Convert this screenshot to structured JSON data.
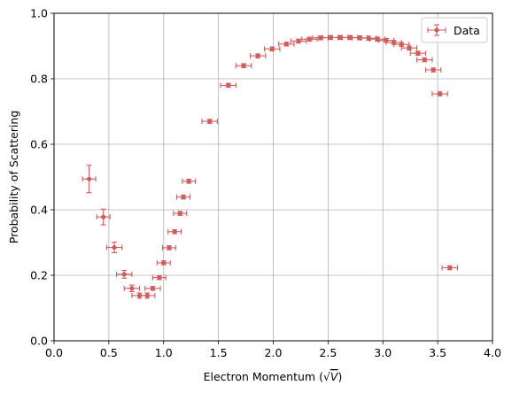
{
  "chart_data": {
    "type": "scatter",
    "title": "",
    "xlabel": "Electron Momentum",
    "xlabel_sqrt_var": "V",
    "ylabel": "Probability of Scattering",
    "xlim": [
      0.0,
      4.0
    ],
    "ylim": [
      0.0,
      1.0
    ],
    "x_ticks": [
      0.0,
      0.5,
      1.0,
      1.5,
      2.0,
      2.5,
      3.0,
      3.5,
      4.0
    ],
    "x_tick_labels": [
      "0.0",
      "0.5",
      "1.0",
      "1.5",
      "2.0",
      "2.5",
      "3.0",
      "3.5",
      "4.0"
    ],
    "y_ticks": [
      0.0,
      0.2,
      0.4,
      0.6,
      0.8,
      1.0
    ],
    "y_tick_labels": [
      "0.0",
      "0.2",
      "0.4",
      "0.6",
      "0.8",
      "1.0"
    ],
    "grid": true,
    "legend_position": "top-right",
    "color": "#cd5c5c",
    "series": [
      {
        "name": "Data",
        "points": [
          {
            "x": 0.32,
            "y": 0.494,
            "xerr": 0.06,
            "yerr": 0.042
          },
          {
            "x": 0.45,
            "y": 0.378,
            "xerr": 0.06,
            "yerr": 0.024
          },
          {
            "x": 0.55,
            "y": 0.285,
            "xerr": 0.07,
            "yerr": 0.016
          },
          {
            "x": 0.64,
            "y": 0.203,
            "xerr": 0.07,
            "yerr": 0.012
          },
          {
            "x": 0.71,
            "y": 0.16,
            "xerr": 0.07,
            "yerr": 0.01
          },
          {
            "x": 0.78,
            "y": 0.138,
            "xerr": 0.07,
            "yerr": 0.008
          },
          {
            "x": 0.85,
            "y": 0.138,
            "xerr": 0.07,
            "yerr": 0.008
          },
          {
            "x": 0.9,
            "y": 0.16,
            "xerr": 0.07,
            "yerr": 0.006
          },
          {
            "x": 0.96,
            "y": 0.193,
            "xerr": 0.06,
            "yerr": 0.006
          },
          {
            "x": 1.0,
            "y": 0.238,
            "xerr": 0.06,
            "yerr": 0.006
          },
          {
            "x": 1.05,
            "y": 0.284,
            "xerr": 0.06,
            "yerr": 0.006
          },
          {
            "x": 1.1,
            "y": 0.333,
            "xerr": 0.06,
            "yerr": 0.006
          },
          {
            "x": 1.15,
            "y": 0.389,
            "xerr": 0.06,
            "yerr": 0.006
          },
          {
            "x": 1.18,
            "y": 0.439,
            "xerr": 0.06,
            "yerr": 0.006
          },
          {
            "x": 1.23,
            "y": 0.487,
            "xerr": 0.06,
            "yerr": 0.006
          },
          {
            "x": 1.42,
            "y": 0.67,
            "xerr": 0.07,
            "yerr": 0.006
          },
          {
            "x": 1.59,
            "y": 0.78,
            "xerr": 0.07,
            "yerr": 0.006
          },
          {
            "x": 1.73,
            "y": 0.84,
            "xerr": 0.07,
            "yerr": 0.006
          },
          {
            "x": 1.86,
            "y": 0.87,
            "xerr": 0.07,
            "yerr": 0.006
          },
          {
            "x": 1.99,
            "y": 0.891,
            "xerr": 0.07,
            "yerr": 0.006
          },
          {
            "x": 2.12,
            "y": 0.906,
            "xerr": 0.07,
            "yerr": 0.006
          },
          {
            "x": 2.23,
            "y": 0.915,
            "xerr": 0.07,
            "yerr": 0.006
          },
          {
            "x": 2.33,
            "y": 0.921,
            "xerr": 0.07,
            "yerr": 0.006
          },
          {
            "x": 2.43,
            "y": 0.925,
            "xerr": 0.07,
            "yerr": 0.006
          },
          {
            "x": 2.52,
            "y": 0.926,
            "xerr": 0.07,
            "yerr": 0.006
          },
          {
            "x": 2.61,
            "y": 0.926,
            "xerr": 0.07,
            "yerr": 0.006
          },
          {
            "x": 2.7,
            "y": 0.926,
            "xerr": 0.07,
            "yerr": 0.006
          },
          {
            "x": 2.79,
            "y": 0.925,
            "xerr": 0.07,
            "yerr": 0.006
          },
          {
            "x": 2.87,
            "y": 0.924,
            "xerr": 0.07,
            "yerr": 0.006
          },
          {
            "x": 2.95,
            "y": 0.921,
            "xerr": 0.07,
            "yerr": 0.006
          },
          {
            "x": 3.03,
            "y": 0.917,
            "xerr": 0.07,
            "yerr": 0.006
          },
          {
            "x": 3.1,
            "y": 0.911,
            "xerr": 0.07,
            "yerr": 0.006
          },
          {
            "x": 3.17,
            "y": 0.905,
            "xerr": 0.07,
            "yerr": 0.006
          },
          {
            "x": 3.24,
            "y": 0.894,
            "xerr": 0.07,
            "yerr": 0.006
          },
          {
            "x": 3.32,
            "y": 0.878,
            "xerr": 0.07,
            "yerr": 0.006
          },
          {
            "x": 3.38,
            "y": 0.858,
            "xerr": 0.07,
            "yerr": 0.006
          },
          {
            "x": 3.46,
            "y": 0.827,
            "xerr": 0.07,
            "yerr": 0.006
          },
          {
            "x": 3.52,
            "y": 0.754,
            "xerr": 0.07,
            "yerr": 0.006
          },
          {
            "x": 3.61,
            "y": 0.223,
            "xerr": 0.07,
            "yerr": 0.006
          }
        ]
      }
    ]
  }
}
